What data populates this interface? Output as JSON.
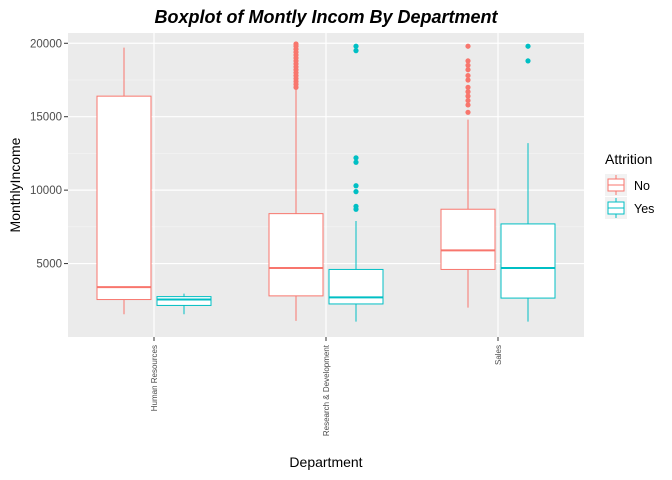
{
  "chart_data": {
    "type": "boxplot",
    "title": "Boxplot of Montly Incom By  Department",
    "xlabel": "Department",
    "ylabel": "MonthlyIncome",
    "ylim": [
      0,
      20700
    ],
    "y_ticks": [
      5000,
      10000,
      15000,
      20000
    ],
    "y_tick_labels": [
      "5000",
      "10000",
      "15000",
      "20000"
    ],
    "categories": [
      "Human Resources",
      "Research & Development",
      "Sales"
    ],
    "legend": {
      "title": "Attrition",
      "position": "right"
    },
    "grid": true,
    "series": [
      {
        "name": "No",
        "color": "#F8766D",
        "boxes": [
          {
            "min": 1550,
            "q1": 2550,
            "median": 3400,
            "q3": 16400,
            "max": 19700,
            "outliers": []
          },
          {
            "min": 1100,
            "q1": 2800,
            "median": 4700,
            "q3": 8400,
            "max": 16900,
            "outliers": [
              17000,
              17200,
              17400,
              17600,
              17800,
              18000,
              18200,
              18400,
              18600,
              18800,
              19000,
              19200,
              19400,
              19600,
              19800,
              19950
            ]
          },
          {
            "min": 2000,
            "q1": 4600,
            "median": 5900,
            "q3": 8700,
            "max": 14800,
            "outliers": [
              15300,
              15800,
              16100,
              16400,
              16700,
              17000,
              17500,
              17800,
              18200,
              18500,
              18800,
              19800
            ]
          }
        ]
      },
      {
        "name": "Yes",
        "color": "#00BFC4",
        "boxes": [
          {
            "min": 1550,
            "q1": 2150,
            "median": 2550,
            "q3": 2750,
            "max": 2950,
            "outliers": []
          },
          {
            "min": 1050,
            "q1": 2250,
            "median": 2700,
            "q3": 4600,
            "max": 7900,
            "outliers": [
              8700,
              8900,
              9900,
              10300,
              11900,
              12200,
              19500,
              19800
            ]
          },
          {
            "min": 1050,
            "q1": 2650,
            "median": 4700,
            "q3": 7700,
            "max": 13200,
            "outliers": [
              18800,
              19800
            ]
          }
        ]
      }
    ]
  }
}
